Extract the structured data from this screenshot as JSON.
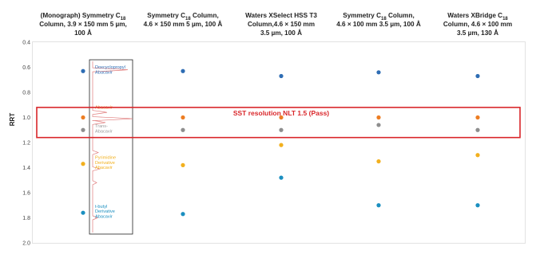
{
  "chart_data": {
    "type": "scatter",
    "ylabel": "RRT",
    "ylim": [
      0.4,
      2.0
    ],
    "y_inverted": true,
    "yticks": [
      "0.4",
      "0.6",
      "0.8",
      "1.0",
      "1.2",
      "1.4",
      "1.6",
      "1.8",
      "2.0"
    ],
    "grid": false,
    "columns": [
      {
        "header": [
          "(Monograph) Symmetry C",
          "18",
          "",
          "Column, 3.9 × 150 mm 5 µm,",
          "",
          "",
          "100 Å"
        ]
      },
      {
        "header": [
          "Symmetry C",
          "18",
          " Column,",
          "4.6 × 150 mm 5 µm, 100 Å",
          "",
          "",
          ""
        ]
      },
      {
        "header": [
          "Waters XSelect HSS T3",
          "",
          "",
          "Column,4.6 × 150 mm",
          "",
          "",
          "3.5 µm, 100 Å"
        ]
      },
      {
        "header": [
          "Symmetry C",
          "18",
          " Column,",
          "4.6 × 100 mm 3.5 µm, 100 Å",
          "",
          "",
          ""
        ]
      },
      {
        "header": [
          "Waters XBridge C",
          "18",
          "",
          "Column, 4.6 × 100 mm",
          "",
          "",
          "3.5 µm, 130 Å"
        ]
      }
    ],
    "series_colors": {
      "Doxycyclopropyl Abacavir": "#2e6db4",
      "Abacavir": "#ed7d22",
      "Trans-Abacavir": "#8e8e8e",
      "Pyrimidine Derivative Abacavir": "#f2b01e",
      "t-butyl Derivative Abacavir": "#1b8fc0"
    },
    "points": [
      {
        "col": 0,
        "y": 0.63,
        "color": "#2e6db4"
      },
      {
        "col": 0,
        "y": 1.0,
        "color": "#ed7d22"
      },
      {
        "col": 0,
        "y": 1.1,
        "color": "#8e8e8e"
      },
      {
        "col": 0,
        "y": 1.37,
        "color": "#f2b01e"
      },
      {
        "col": 0,
        "y": 1.76,
        "color": "#1b8fc0"
      },
      {
        "col": 1,
        "y": 0.63,
        "color": "#2e6db4"
      },
      {
        "col": 1,
        "y": 1.0,
        "color": "#ed7d22"
      },
      {
        "col": 1,
        "y": 1.1,
        "color": "#8e8e8e"
      },
      {
        "col": 1,
        "y": 1.38,
        "color": "#f2b01e"
      },
      {
        "col": 1,
        "y": 1.77,
        "color": "#1b8fc0"
      },
      {
        "col": 2,
        "y": 0.67,
        "color": "#2e6db4"
      },
      {
        "col": 2,
        "y": 1.0,
        "color": "#ed7d22"
      },
      {
        "col": 2,
        "y": 1.1,
        "color": "#8e8e8e"
      },
      {
        "col": 2,
        "y": 1.22,
        "color": "#f2b01e"
      },
      {
        "col": 2,
        "y": 1.48,
        "color": "#1b8fc0"
      },
      {
        "col": 3,
        "y": 0.64,
        "color": "#2e6db4"
      },
      {
        "col": 3,
        "y": 1.0,
        "color": "#ed7d22"
      },
      {
        "col": 3,
        "y": 1.06,
        "color": "#8e8e8e"
      },
      {
        "col": 3,
        "y": 1.35,
        "color": "#f2b01e"
      },
      {
        "col": 3,
        "y": 1.7,
        "color": "#1b8fc0"
      },
      {
        "col": 4,
        "y": 0.67,
        "color": "#2e6db4"
      },
      {
        "col": 4,
        "y": 1.0,
        "color": "#ed7d22"
      },
      {
        "col": 4,
        "y": 1.1,
        "color": "#8e8e8e"
      },
      {
        "col": 4,
        "y": 1.3,
        "color": "#f2b01e"
      },
      {
        "col": 4,
        "y": 1.7,
        "color": "#1b8fc0"
      }
    ],
    "banner": "SST resolution NLT 1.5 (Pass)",
    "banner_color": "#d9262a",
    "resolution_band": [
      0.92,
      1.16
    ],
    "inset": {
      "range": [
        0.54,
        1.93
      ],
      "line_color": "#e07a7a",
      "labels": [
        {
          "text": [
            "Doxcyclopropyl",
            "Abacavir"
          ],
          "y": 0.63,
          "color": "#2e6db4"
        },
        {
          "text": [
            "Abacavir"
          ],
          "y": 0.93,
          "color": "#ed7d22"
        },
        {
          "text": [
            "Trans-",
            "Abacavir"
          ],
          "y": 1.1,
          "color": "#9a9a9a"
        },
        {
          "text": [
            "Pyrimidine",
            "Derivative",
            "Abacavir"
          ],
          "y": 1.37,
          "color": "#f2b01e"
        },
        {
          "text": [
            "t-butyl",
            "Derivative",
            "Abacavir"
          ],
          "y": 1.76,
          "color": "#1b8fc0"
        }
      ]
    }
  }
}
